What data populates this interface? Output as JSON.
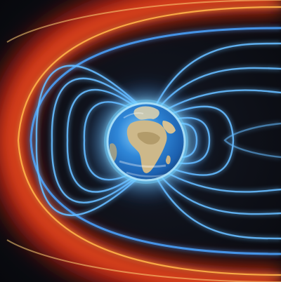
{
  "scene": {
    "subject": "earth-magnetosphere",
    "palette": {
      "space": "#0b0c12",
      "bow_shock_glow": "#ff3a1a",
      "bow_shock_core": "#ffcf6a",
      "field_line": "#63b8ff",
      "field_line_core": "#e6f6ff",
      "earth_glow": "#5fd0ff",
      "ocean": "#2a7fd6",
      "land": "#d7c6a0"
    }
  }
}
